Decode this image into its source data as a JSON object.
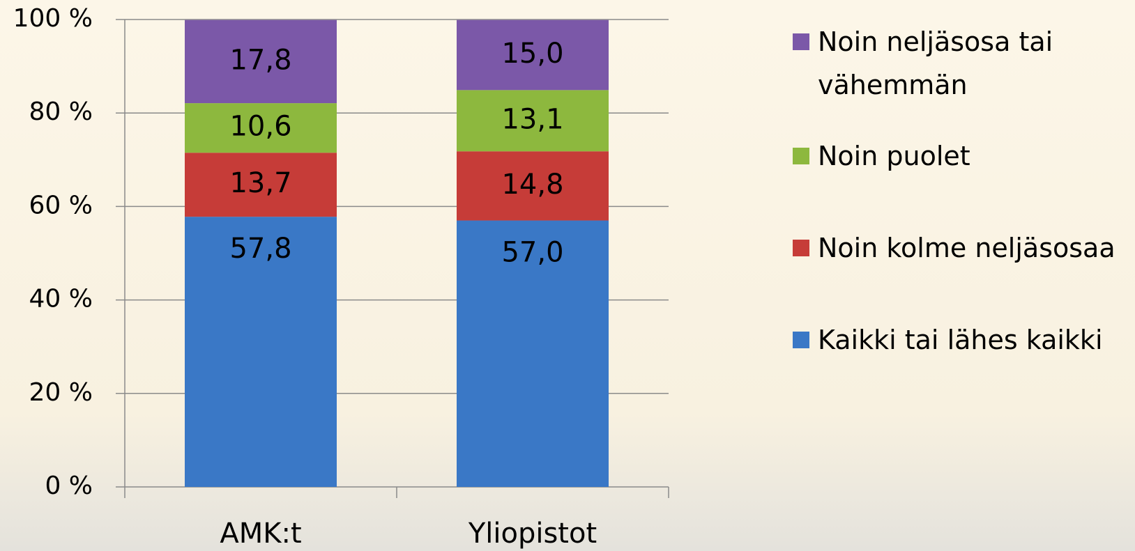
{
  "chart_data": {
    "type": "bar",
    "stacked": true,
    "categories": [
      "AMK:t",
      "Yliopistot"
    ],
    "series": [
      {
        "name": "Kaikki tai lähes kaikki",
        "color": "#3a78c6",
        "values": [
          57.8,
          57.0
        ],
        "value_labels": [
          "57,8",
          "57,0"
        ]
      },
      {
        "name": "Noin kolme neljäsosaa",
        "color": "#c63c38",
        "values": [
          13.7,
          14.8
        ],
        "value_labels": [
          "13,7",
          "14,8"
        ]
      },
      {
        "name": "Noin puolet",
        "color": "#8db83e",
        "values": [
          10.6,
          13.1
        ],
        "value_labels": [
          "10,6",
          "13,1"
        ]
      },
      {
        "name": "Noin neljäsosa tai vähemmän",
        "color": "#7b58a8",
        "values": [
          17.8,
          15.0
        ],
        "value_labels": [
          "17,8",
          "15,0"
        ]
      }
    ],
    "ylim": [
      0,
      100
    ],
    "yticks": [
      {
        "value": 0,
        "label": "0 %"
      },
      {
        "value": 20,
        "label": "20 %"
      },
      {
        "value": 40,
        "label": "40 %"
      },
      {
        "value": 60,
        "label": "60 %"
      },
      {
        "value": 80,
        "label": "80 %"
      },
      {
        "value": 100,
        "label": "100 %"
      }
    ],
    "grid": true,
    "legend": "right"
  }
}
